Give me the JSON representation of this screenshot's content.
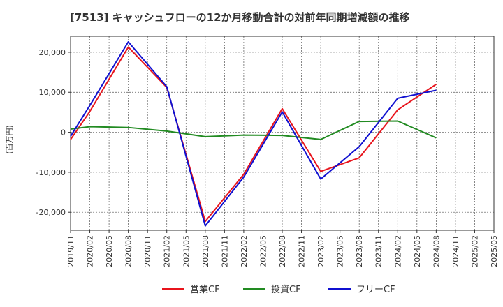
{
  "chart_data": {
    "type": "line",
    "title": "[7513]  キャッシュフローの12か月移動合計の対前年同期増減額の推移",
    "ylabel": "(百万円)",
    "xlabel": "",
    "ylim": [
      -24500,
      24000
    ],
    "yticks": [
      20000,
      10000,
      0,
      -10000,
      -20000
    ],
    "ytick_labels": [
      "20,000",
      "10,000",
      "0",
      "-10,000",
      "-20,000"
    ],
    "categories": [
      "2019/11",
      "2020/02",
      "2020/05",
      "2020/08",
      "2020/11",
      "2021/02",
      "2021/05",
      "2021/08",
      "2021/11",
      "2022/02",
      "2022/05",
      "2022/08",
      "2022/11",
      "2023/02",
      "2023/05",
      "2023/08",
      "2023/11",
      "2024/02",
      "2024/05",
      "2024/08",
      "2024/11",
      "2025/02",
      "2025/05"
    ],
    "grid": true,
    "legend_position": "bottom",
    "series": [
      {
        "name": "営業CF",
        "color": "#e8141c",
        "values": [
          -1800,
          5200,
          null,
          21300,
          null,
          11200,
          null,
          -22300,
          null,
          -10500,
          null,
          5900,
          null,
          -9800,
          null,
          -6400,
          null,
          5600,
          null,
          12000,
          null,
          null,
          null
        ]
      },
      {
        "name": "投資CF",
        "color": "#228B22",
        "values": [
          800,
          1400,
          null,
          1200,
          null,
          300,
          null,
          -1100,
          null,
          -700,
          null,
          -800,
          null,
          -1800,
          null,
          2700,
          null,
          2800,
          null,
          -1400,
          null,
          null,
          null
        ]
      },
      {
        "name": "フリーCF",
        "color": "#1010d0",
        "values": [
          -1000,
          6700,
          null,
          22600,
          null,
          11400,
          null,
          -23400,
          null,
          -11200,
          null,
          5100,
          null,
          -11700,
          null,
          -3600,
          null,
          8500,
          null,
          10500,
          null,
          null,
          null
        ]
      }
    ]
  }
}
